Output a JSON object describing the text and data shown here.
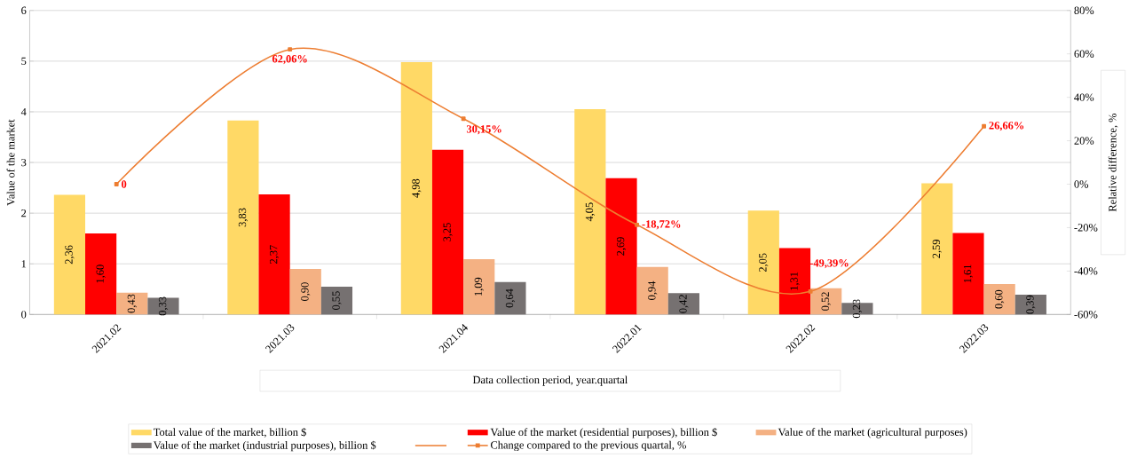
{
  "chart_data": {
    "type": "bar",
    "categories": [
      "2021.02",
      "2021.03",
      "2021.04",
      "2022.01",
      "2022.02",
      "2022.03"
    ],
    "xlabel": "Data collection period, year.quartal",
    "ylabel": "Value of the market",
    "y2label": "Relative difference, %",
    "ylim": [
      0,
      6
    ],
    "yticks": [
      0,
      1,
      2,
      3,
      4,
      5,
      6
    ],
    "y2lim": [
      -60,
      80
    ],
    "y2ticks": [
      {
        "value": -60,
        "label": "-60%"
      },
      {
        "value": -40,
        "label": "-40%"
      },
      {
        "value": -20,
        "label": "-20%"
      },
      {
        "value": 0,
        "label": "0%"
      },
      {
        "value": 20,
        "label": "20%"
      },
      {
        "value": 40,
        "label": "40%"
      },
      {
        "value": 60,
        "label": "60%"
      },
      {
        "value": 80,
        "label": "80%"
      }
    ],
    "grid": "y",
    "legend": "bottom",
    "series": [
      {
        "name": "Total value of the market, billion $",
        "color": "#ffd966",
        "values": [
          2.36,
          3.83,
          4.98,
          4.05,
          2.05,
          2.59
        ],
        "value_labels": [
          "2,36",
          "3,83",
          "4,98",
          "4,05",
          "2,05",
          "2,59"
        ]
      },
      {
        "name": "Value of the market (residential purposes), billion $",
        "color": "#ff0000",
        "values": [
          1.6,
          2.37,
          3.25,
          2.69,
          1.31,
          1.61
        ],
        "value_labels": [
          "1,60",
          "2,37",
          "3,25",
          "2,69",
          "1,31",
          "1,61"
        ]
      },
      {
        "name": "Value of the market (agricultural purposes)",
        "color": "#f4b183",
        "values": [
          0.43,
          0.9,
          1.09,
          0.94,
          0.52,
          0.6
        ],
        "value_labels": [
          "0,43",
          "0,90",
          "1,09",
          "0,94",
          "0,52",
          "0,60"
        ]
      },
      {
        "name": "Value of the market (industrial purposes), billion $",
        "color": "#767171",
        "values": [
          0.33,
          0.55,
          0.64,
          0.42,
          0.23,
          0.39
        ],
        "value_labels": [
          "0,33",
          "0,55",
          "0,64",
          "0,42",
          "0,23",
          "0,39"
        ]
      },
      {
        "name": "Change compared to the previous quartal, %",
        "type": "line",
        "axis": "y2",
        "marker": "square",
        "line_style": "solid",
        "color": "#ed7d31",
        "values": [
          0,
          62.06,
          30.15,
          -18.72,
          -49.39,
          26.66
        ],
        "value_labels": [
          "0",
          "62,06%",
          "30,15%",
          "-18,72%",
          "-49,39%",
          "26,66%"
        ]
      }
    ]
  }
}
